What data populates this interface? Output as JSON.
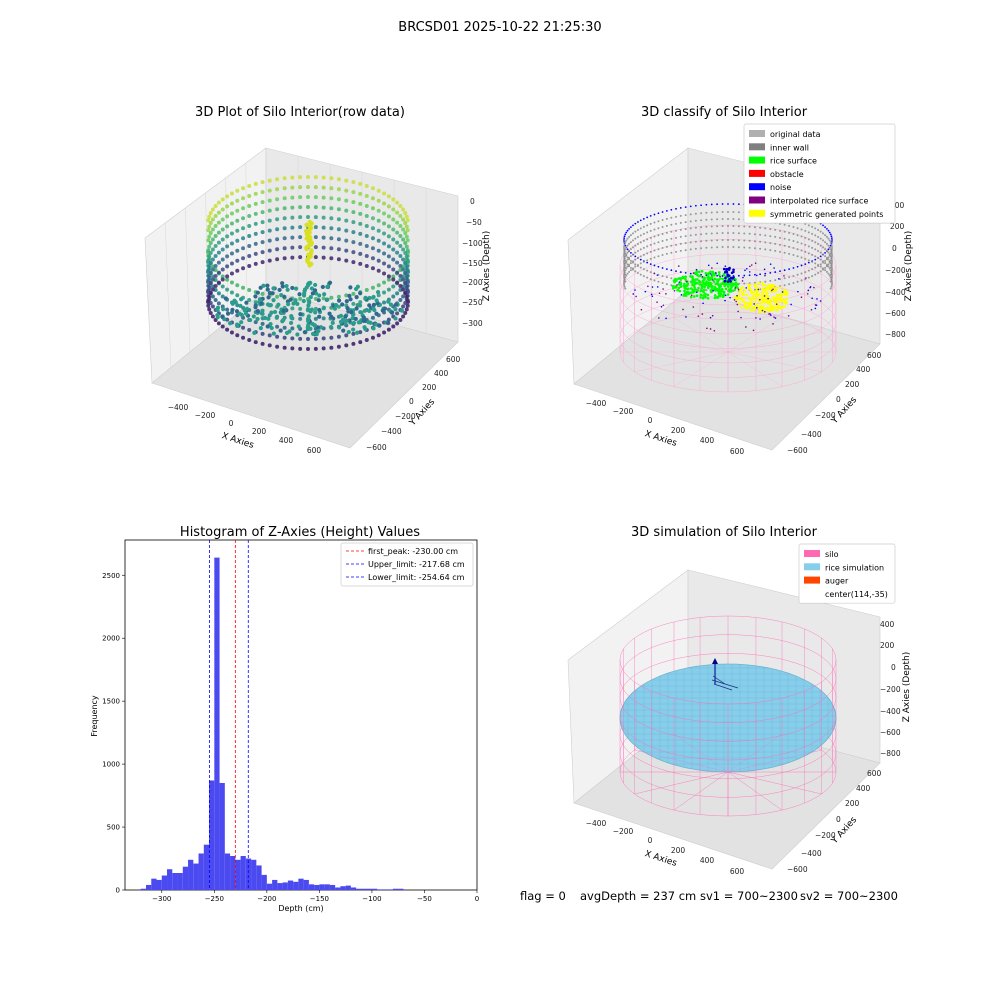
{
  "figure": {
    "suptitle": "BRCSD01 2025-10-22 21:25:30",
    "footer": {
      "flag": "flag = 0",
      "avg_depth": "avgDepth = 237 cm",
      "sv1": "sv1 = 700~2300",
      "sv2": "sv2 = 700~2300"
    }
  },
  "panels": {
    "raw": {
      "title": "3D Plot of Silo Interior(row data)",
      "xlabel": "X Axies",
      "ylabel": "Y Axies",
      "zlabel": "Z Axies (Depth)",
      "xticks": [
        "−400",
        "−200",
        "0",
        "200",
        "400",
        "600"
      ],
      "yticks": [
        "−600",
        "−400",
        "−200",
        "0",
        "200",
        "400",
        "600"
      ],
      "zticks": [
        "0",
        "−50",
        "−100",
        "−150",
        "−200",
        "−250",
        "−300"
      ]
    },
    "classify": {
      "title": "3D classify of Silo Interior",
      "xlabel": "X Axies",
      "ylabel": "Y Axies",
      "zlabel": "Z Axies (Depth)",
      "xticks": [
        "−400",
        "−200",
        "0",
        "200",
        "400",
        "600"
      ],
      "yticks": [
        "−600",
        "−400",
        "−200",
        "0",
        "200",
        "400",
        "600"
      ],
      "zticks": [
        "200",
        "0",
        "−200",
        "−400",
        "−600",
        "−800"
      ],
      "legend": [
        {
          "label": "original data",
          "color": "#b0b0b0"
        },
        {
          "label": "inner wall",
          "color": "#808080"
        },
        {
          "label": "rice surface",
          "color": "#00ff00"
        },
        {
          "label": "obstacle",
          "color": "#ff0000"
        },
        {
          "label": "noise",
          "color": "#0000ff"
        },
        {
          "label": "interpolated rice surface",
          "color": "#800080"
        },
        {
          "label": "symmetric generated points",
          "color": "#ffff00"
        }
      ]
    },
    "simulation": {
      "title": "3D simulation of Silo Interior",
      "xlabel": "X Axies",
      "ylabel": "Y Axies",
      "zlabel": "Z Axies (Depth)",
      "xticks": [
        "−400",
        "−200",
        "0",
        "200",
        "400",
        "600"
      ],
      "yticks": [
        "−600",
        "−400",
        "−200",
        "0",
        "200",
        "400",
        "600"
      ],
      "zticks": [
        "400",
        "200",
        "0",
        "−200",
        "−400",
        "−600",
        "−800"
      ],
      "legend": [
        {
          "label": "silo",
          "color": "#ff69b4"
        },
        {
          "label": "rice simulation",
          "color": "#87ceeb"
        },
        {
          "label": "auger",
          "color": "#ff4500"
        },
        {
          "label": "center(114,-35)",
          "color": ""
        }
      ]
    }
  },
  "chart_data": {
    "type": "bar",
    "title": "Histogram of Z-Axies (Height) Values",
    "xlabel": "Depth (cm)",
    "ylabel": "Frequency",
    "xlim": [
      -335,
      0
    ],
    "ylim": [
      0,
      2780
    ],
    "xticks": [
      -300,
      -250,
      -200,
      -150,
      -100,
      -50,
      0
    ],
    "yticks": [
      0,
      500,
      1000,
      1500,
      2000,
      2500
    ],
    "bin_width": 5,
    "bars_color": "#4a4af0",
    "bins": [
      {
        "x": -320,
        "v": 10
      },
      {
        "x": -315,
        "v": 40
      },
      {
        "x": -310,
        "v": 90
      },
      {
        "x": -305,
        "v": 80
      },
      {
        "x": -300,
        "v": 115
      },
      {
        "x": -295,
        "v": 165
      },
      {
        "x": -290,
        "v": 135
      },
      {
        "x": -285,
        "v": 135
      },
      {
        "x": -280,
        "v": 185
      },
      {
        "x": -275,
        "v": 240
      },
      {
        "x": -270,
        "v": 210
      },
      {
        "x": -265,
        "v": 290
      },
      {
        "x": -260,
        "v": 360
      },
      {
        "x": -255,
        "v": 870
      },
      {
        "x": -250,
        "v": 2640
      },
      {
        "x": -245,
        "v": 850
      },
      {
        "x": -240,
        "v": 290
      },
      {
        "x": -235,
        "v": 270
      },
      {
        "x": -230,
        "v": 240
      },
      {
        "x": -225,
        "v": 270
      },
      {
        "x": -220,
        "v": 250
      },
      {
        "x": -215,
        "v": 240
      },
      {
        "x": -210,
        "v": 195
      },
      {
        "x": -205,
        "v": 120
      },
      {
        "x": -200,
        "v": 50
      },
      {
        "x": -195,
        "v": 80
      },
      {
        "x": -190,
        "v": 55
      },
      {
        "x": -185,
        "v": 60
      },
      {
        "x": -180,
        "v": 75
      },
      {
        "x": -175,
        "v": 65
      },
      {
        "x": -170,
        "v": 90
      },
      {
        "x": -165,
        "v": 80
      },
      {
        "x": -160,
        "v": 45
      },
      {
        "x": -155,
        "v": 40
      },
      {
        "x": -150,
        "v": 45
      },
      {
        "x": -145,
        "v": 45
      },
      {
        "x": -140,
        "v": 40
      },
      {
        "x": -135,
        "v": 20
      },
      {
        "x": -130,
        "v": 30
      },
      {
        "x": -125,
        "v": 35
      },
      {
        "x": -120,
        "v": 20
      },
      {
        "x": -115,
        "v": 10
      },
      {
        "x": -110,
        "v": 10
      },
      {
        "x": -105,
        "v": 10
      },
      {
        "x": -100,
        "v": 10
      },
      {
        "x": -95,
        "v": 5
      },
      {
        "x": -90,
        "v": 5
      },
      {
        "x": -85,
        "v": 5
      },
      {
        "x": -80,
        "v": 10
      },
      {
        "x": -75,
        "v": 10
      }
    ],
    "lines": [
      {
        "label": "first_peak: -230.00 cm",
        "value": -230.0,
        "color": "#ff0000"
      },
      {
        "label": "Upper_limit: -217.68 cm",
        "value": -217.68,
        "color": "#0000ff"
      },
      {
        "label": "Lower_limit: -254.64 cm",
        "value": -254.64,
        "color": "#0000ff"
      }
    ],
    "legend_position": "upper right"
  }
}
